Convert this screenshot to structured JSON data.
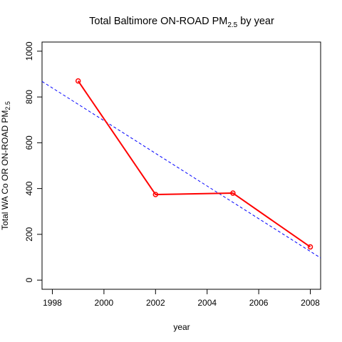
{
  "chart_data": {
    "type": "line",
    "title": {
      "main": "Total Baltimore ON-ROAD PM",
      "sub": "2.5",
      "suffix": " by year"
    },
    "xlabel": "year",
    "ylabel": {
      "main": "Total WA Co OR ON-ROAD PM",
      "sub": "2.5"
    },
    "xlim": [
      1997.6,
      2008.4
    ],
    "ylim": [
      -40,
      1040
    ],
    "x_ticks": [
      1998,
      2000,
      2002,
      2004,
      2006,
      2008
    ],
    "y_ticks": [
      0,
      200,
      400,
      600,
      800,
      1000
    ],
    "grid": false,
    "series": [
      {
        "x": [
          1999,
          2002,
          2005,
          2008
        ],
        "y": [
          870,
          374,
          380,
          145
        ],
        "color": "#ff0000",
        "marker": "open-circle",
        "line": "solid"
      }
    ],
    "trend_line": {
      "color": "#0000ff",
      "line": "dashed",
      "intercept_at_xmin": 868,
      "value_at_xmax": 97
    }
  }
}
